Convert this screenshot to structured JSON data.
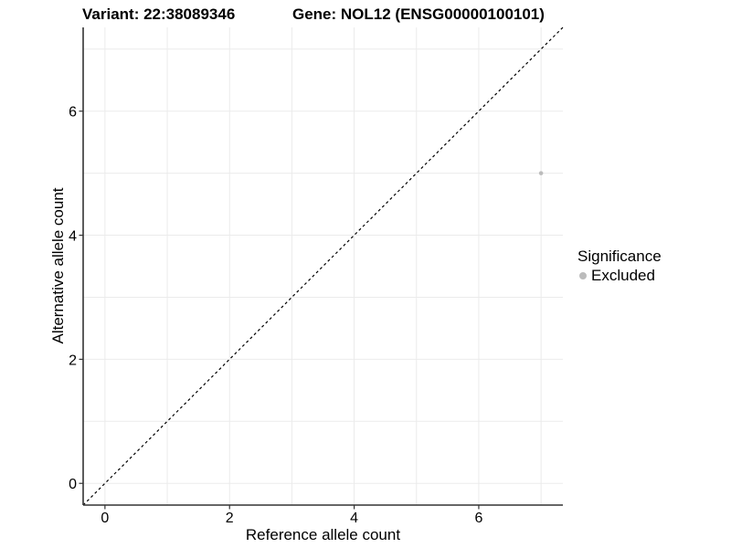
{
  "chart_data": {
    "type": "scatter",
    "titles": [
      "Variant: 22:38089346",
      "Gene: NOL12 (ENSG00000100101)"
    ],
    "xlabel": "Reference allele count",
    "ylabel": "Alternative allele count",
    "xlim": [
      -0.35,
      7.35
    ],
    "ylim": [
      -0.35,
      7.35
    ],
    "x_ticks": [
      0,
      2,
      4,
      6
    ],
    "y_ticks": [
      0,
      2,
      4,
      6
    ],
    "grid": true,
    "grid_every": 1,
    "legend_position": "right",
    "series": [
      {
        "name": "Excluded",
        "color": "#bcbcbc",
        "points": [
          {
            "x": 7,
            "y": 5
          }
        ]
      }
    ],
    "reference_line": {
      "kind": "identity",
      "slope": 1,
      "intercept": 0,
      "style": "dashed",
      "color": "#000000"
    },
    "legend": {
      "title": "Significance",
      "entries": [
        {
          "label": "Excluded",
          "color": "#bcbcbc"
        }
      ]
    },
    "colors": {
      "grid": "#ebebeb",
      "axis_line": "#333333",
      "tick": "#333333",
      "text": "#000000",
      "background": "#ffffff"
    }
  }
}
